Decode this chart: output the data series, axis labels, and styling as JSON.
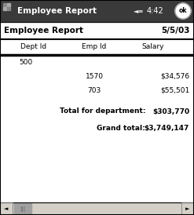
{
  "title_bar_text": "Employee Report",
  "title_bar_time": "4:42",
  "title_bar_bg": "#3a3a3a",
  "title_bar_fg": "#ffffff",
  "report_title": "Employee Report",
  "report_date": "5/5/03",
  "col_headers": [
    "Dept Id",
    "Emp Id",
    "Salary"
  ],
  "dept_id": "500",
  "rows": [
    {
      "emp_id": "1570",
      "salary": "$34,576"
    },
    {
      "emp_id": "703",
      "salary": "$55,501"
    }
  ],
  "total_label": "Total for department:",
  "total_value": "$303,770",
  "grand_label": "Grand total:",
  "grand_value": "$3,749,147",
  "bg_color": "#ffffff",
  "fig_width": 2.47,
  "fig_height": 2.74,
  "dpi": 100
}
